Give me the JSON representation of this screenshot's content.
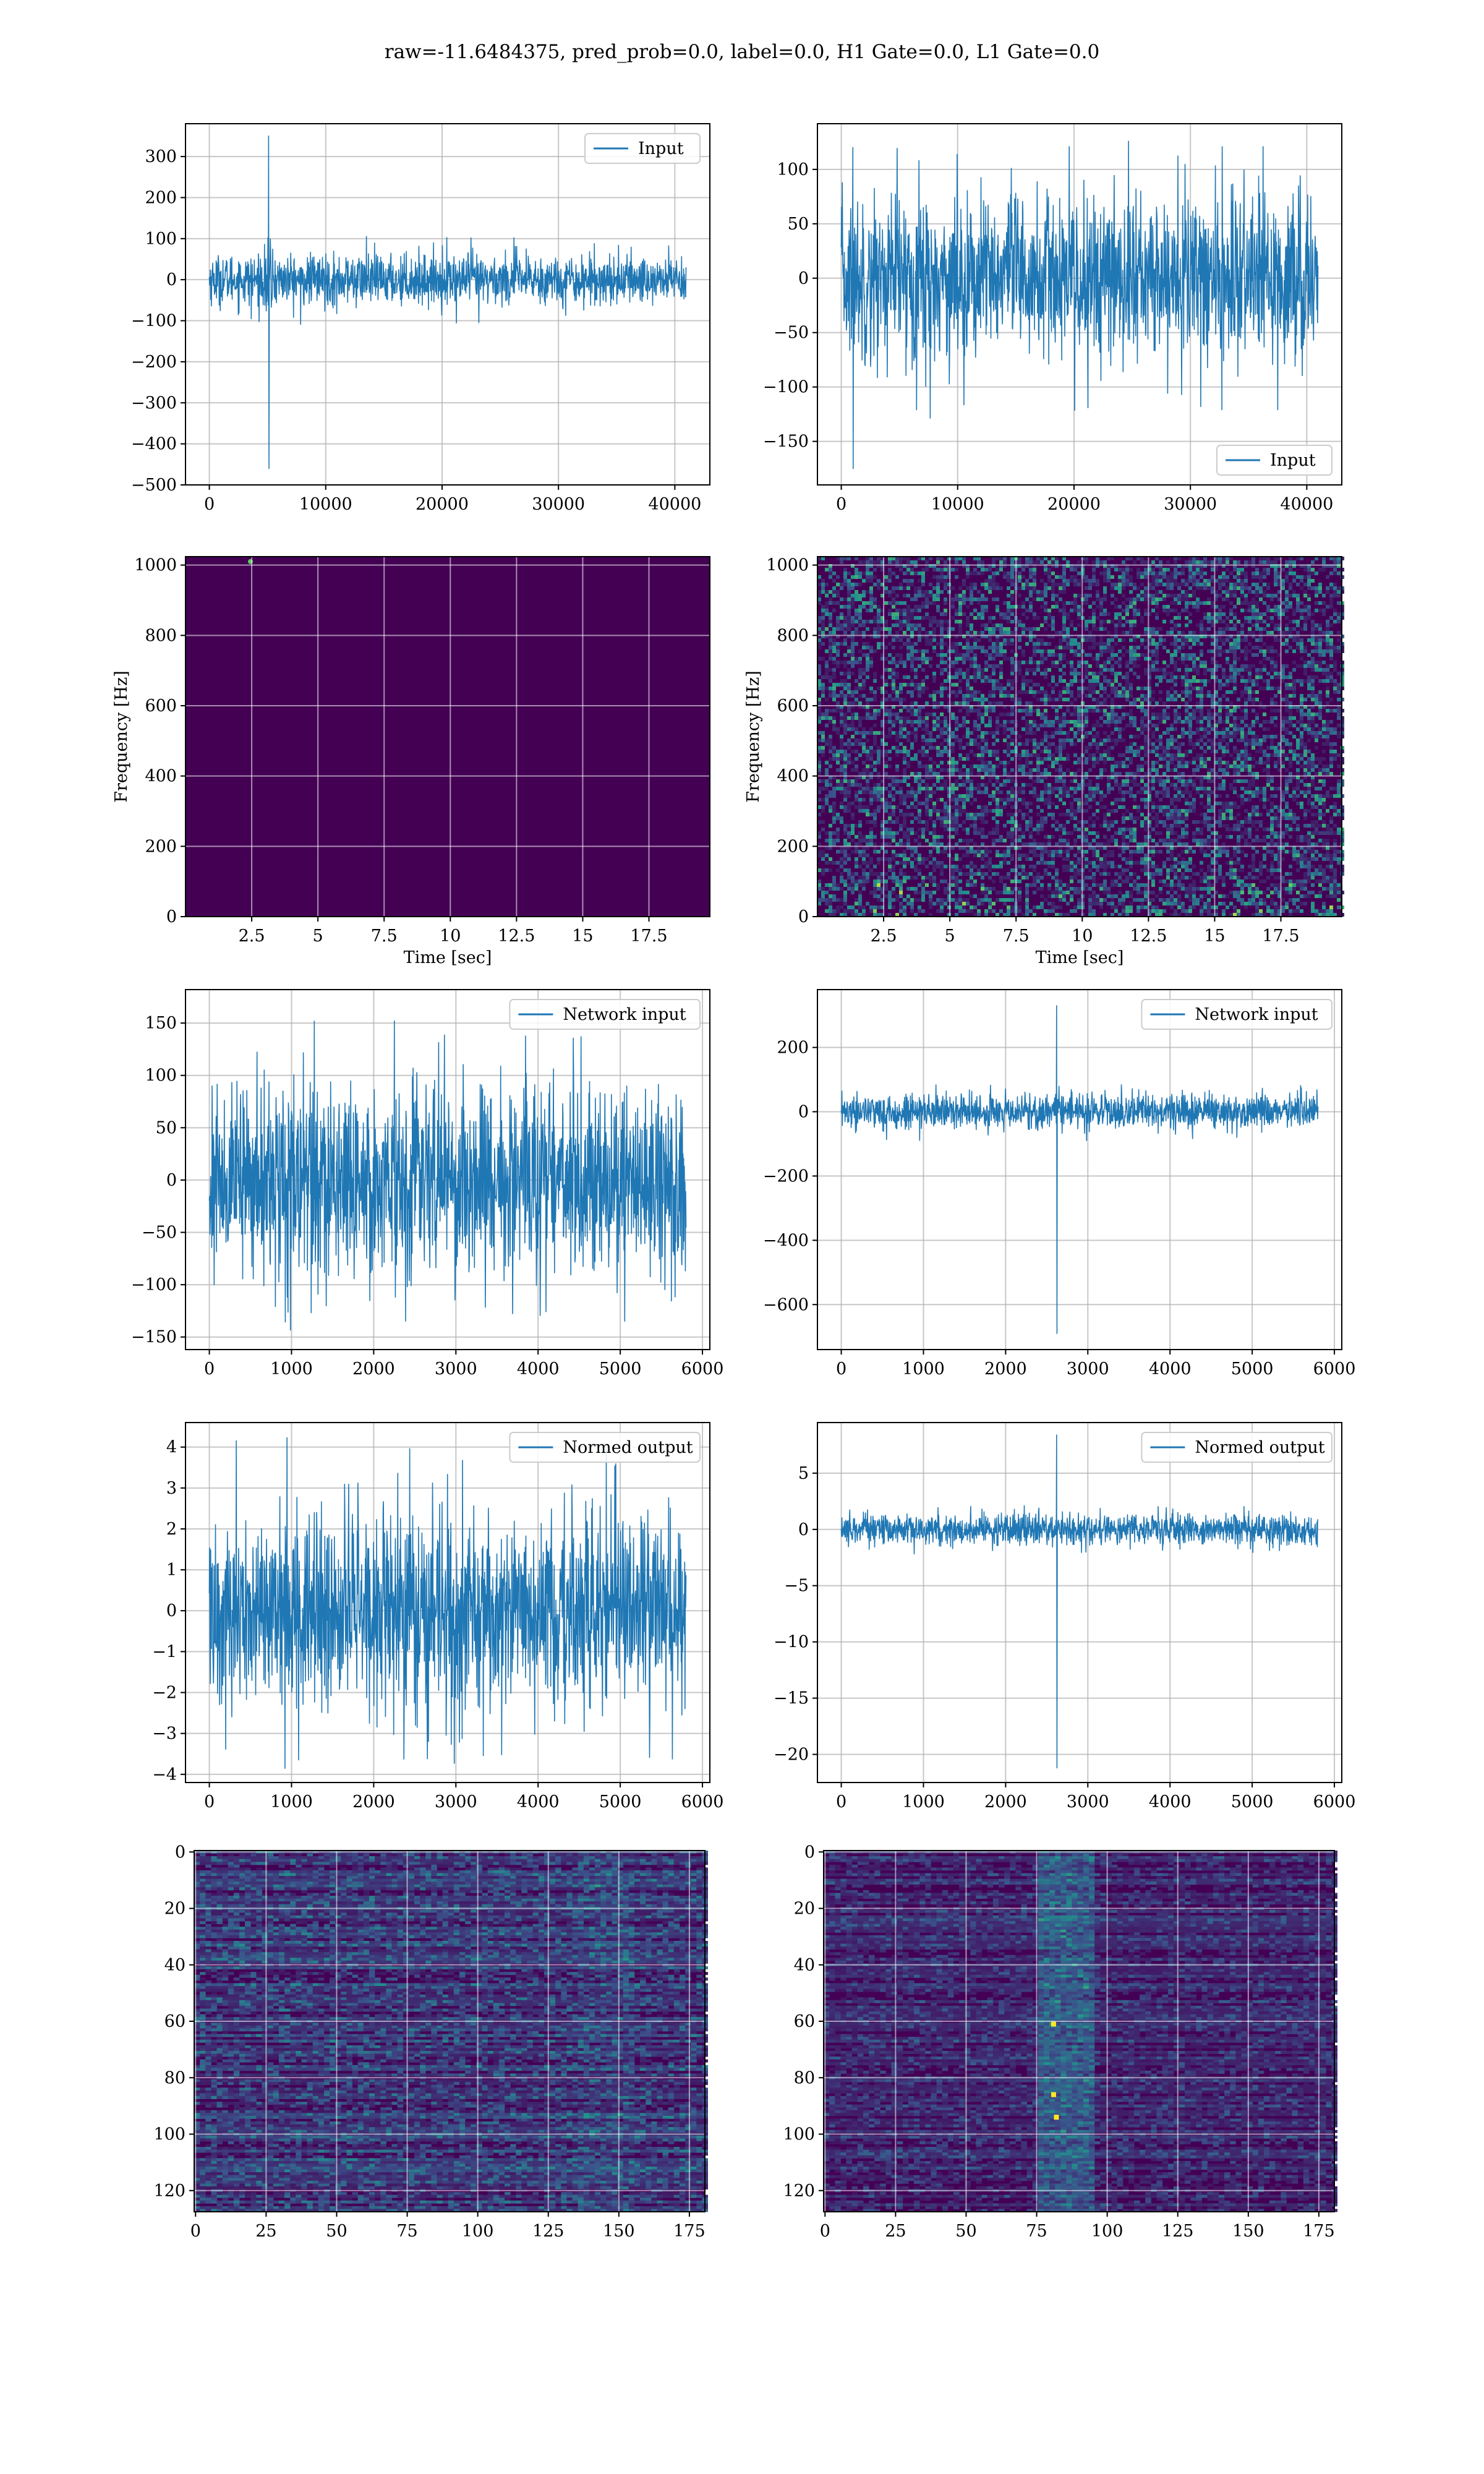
{
  "suptitle": "raw=-11.6484375, pred_prob=0.0, label=0.0, H1 Gate=0.0, L1 Gate=0.0",
  "colors": {
    "line": "#1f77b4",
    "grid": "#b0b0b0",
    "viridis_dark": "#440154",
    "viridis_mid": "#3b528b",
    "viridis_teal": "#21918c",
    "viridis_green": "#5ec962",
    "viridis_yellow": "#fde725"
  },
  "chart_data": [
    {
      "id": "input-h1",
      "type": "line",
      "legend": [
        "Input"
      ],
      "legend_loc": "upper right",
      "series": [
        {
          "name": "Input",
          "x_range": [
            0,
            40960
          ],
          "baseline_amplitude": 60,
          "noise_peaks": [
            -110,
            110
          ],
          "spike": {
            "x": 5100,
            "max": 350,
            "min": -460,
            "decay_width": 400
          }
        }
      ],
      "xlim": [
        -2048,
        43008
      ],
      "ylim": [
        -500,
        380
      ],
      "xticks": [
        0,
        10000,
        20000,
        30000,
        40000
      ],
      "yticks": [
        -500,
        -400,
        -300,
        -200,
        -100,
        0,
        100,
        200,
        300
      ],
      "grid": true
    },
    {
      "id": "input-l1",
      "type": "line",
      "legend": [
        "Input"
      ],
      "legend_loc": "lower right",
      "series": [
        {
          "name": "Input",
          "x_range": [
            0,
            40960
          ],
          "baseline_amplitude": 75,
          "noise_peaks": [
            -130,
            130
          ],
          "spike": {
            "x": 1000,
            "max": 120,
            "min": -175,
            "decay_width": 0
          }
        }
      ],
      "xlim": [
        -2048,
        43008
      ],
      "ylim": [
        -190,
        142
      ],
      "xticks": [
        0,
        10000,
        20000,
        30000,
        40000
      ],
      "yticks": [
        -150,
        -100,
        -50,
        0,
        50,
        100
      ],
      "grid": true
    },
    {
      "id": "spec-h1",
      "type": "heatmap",
      "xlabel": "Time [sec]",
      "ylabel": "Frequency [Hz]",
      "xlim": [
        0,
        19.8
      ],
      "ylim": [
        0,
        1024
      ],
      "xticks": [
        2.5,
        5.0,
        7.5,
        10.0,
        12.5,
        15.0,
        17.5
      ],
      "yticks": [
        0,
        200,
        400,
        600,
        800,
        1000
      ],
      "texture": "uniform-dark",
      "bright_spot": {
        "t": 2.45,
        "f": 1010
      },
      "grid": true
    },
    {
      "id": "spec-l1",
      "type": "heatmap",
      "xlabel": "Time [sec]",
      "ylabel": "Frequency [Hz]",
      "xlim": [
        0,
        19.8
      ],
      "ylim": [
        0,
        1024
      ],
      "xticks": [
        2.5,
        5.0,
        7.5,
        10.0,
        12.5,
        15.0,
        17.5
      ],
      "yticks": [
        0,
        200,
        400,
        600,
        800,
        1000
      ],
      "texture": "speckle",
      "grid": true
    },
    {
      "id": "net-h1",
      "type": "line",
      "legend": [
        "Network input"
      ],
      "legend_loc": "upper right",
      "series": [
        {
          "name": "Network input",
          "x_range": [
            0,
            5800
          ],
          "baseline_amplitude": 90,
          "noise_peaks": [
            -145,
            165
          ]
        }
      ],
      "xlim": [
        -290,
        6090
      ],
      "ylim": [
        -162,
        182
      ],
      "xticks": [
        0,
        1000,
        2000,
        3000,
        4000,
        5000,
        6000
      ],
      "yticks": [
        -150,
        -100,
        -50,
        0,
        50,
        100,
        150
      ],
      "grid": true
    },
    {
      "id": "net-l1",
      "type": "line",
      "legend": [
        "Network input"
      ],
      "legend_loc": "upper right",
      "series": [
        {
          "name": "Network input",
          "x_range": [
            0,
            5800
          ],
          "baseline_amplitude": 55,
          "noise_peaks": [
            -90,
            90
          ],
          "spike": {
            "x": 2620,
            "max": 330,
            "min": -690,
            "decay_width": 0
          }
        }
      ],
      "xlim": [
        -290,
        6090
      ],
      "ylim": [
        -740,
        380
      ],
      "xticks": [
        0,
        1000,
        2000,
        3000,
        4000,
        5000,
        6000
      ],
      "yticks": [
        -600,
        -400,
        -200,
        0,
        200
      ],
      "grid": true
    },
    {
      "id": "norm-h1",
      "type": "line",
      "legend": [
        "Normed output"
      ],
      "legend_loc": "upper right",
      "series": [
        {
          "name": "Normed output",
          "x_range": [
            0,
            5800
          ],
          "baseline_amplitude": 2.4,
          "noise_peaks": [
            -3.9,
            4.3
          ]
        }
      ],
      "xlim": [
        -290,
        6090
      ],
      "ylim": [
        -4.2,
        4.6
      ],
      "xticks": [
        0,
        1000,
        2000,
        3000,
        4000,
        5000,
        6000
      ],
      "yticks": [
        -4,
        -3,
        -2,
        -1,
        0,
        1,
        2,
        3,
        4
      ],
      "grid": true
    },
    {
      "id": "norm-l1",
      "type": "line",
      "legend": [
        "Normed output"
      ],
      "legend_loc": "upper right",
      "series": [
        {
          "name": "Normed output",
          "x_range": [
            0,
            5800
          ],
          "baseline_amplitude": 1.4,
          "noise_peaks": [
            -2.2,
            2.2
          ],
          "spike": {
            "x": 2620,
            "max": 8.4,
            "min": -21.2,
            "decay_width": 0
          }
        }
      ],
      "xlim": [
        -290,
        6090
      ],
      "ylim": [
        -22.5,
        9.5
      ],
      "xticks": [
        0,
        1000,
        2000,
        3000,
        4000,
        5000,
        6000
      ],
      "yticks": [
        -20,
        -15,
        -10,
        -5,
        0,
        5
      ],
      "grid": true
    },
    {
      "id": "feat-h1",
      "type": "heatmap",
      "xlim": [
        -0.5,
        180.5
      ],
      "ylim": [
        127.5,
        -0.5
      ],
      "xticks": [
        0,
        25,
        50,
        75,
        100,
        125,
        150,
        175
      ],
      "yticks": [
        0,
        20,
        40,
        60,
        80,
        100,
        120
      ],
      "texture": "streaks",
      "grid": true
    },
    {
      "id": "feat-l1",
      "type": "heatmap",
      "xlim": [
        -0.5,
        180.5
      ],
      "ylim": [
        127.5,
        -0.5
      ],
      "xticks": [
        0,
        25,
        50,
        75,
        100,
        125,
        150,
        175
      ],
      "yticks": [
        0,
        20,
        40,
        60,
        80,
        100,
        120
      ],
      "texture": "streaks-band",
      "band_x": [
        75,
        95
      ],
      "bright_points": [
        [
          81,
          61
        ],
        [
          81,
          86
        ],
        [
          82,
          94
        ]
      ],
      "grid": true
    }
  ]
}
